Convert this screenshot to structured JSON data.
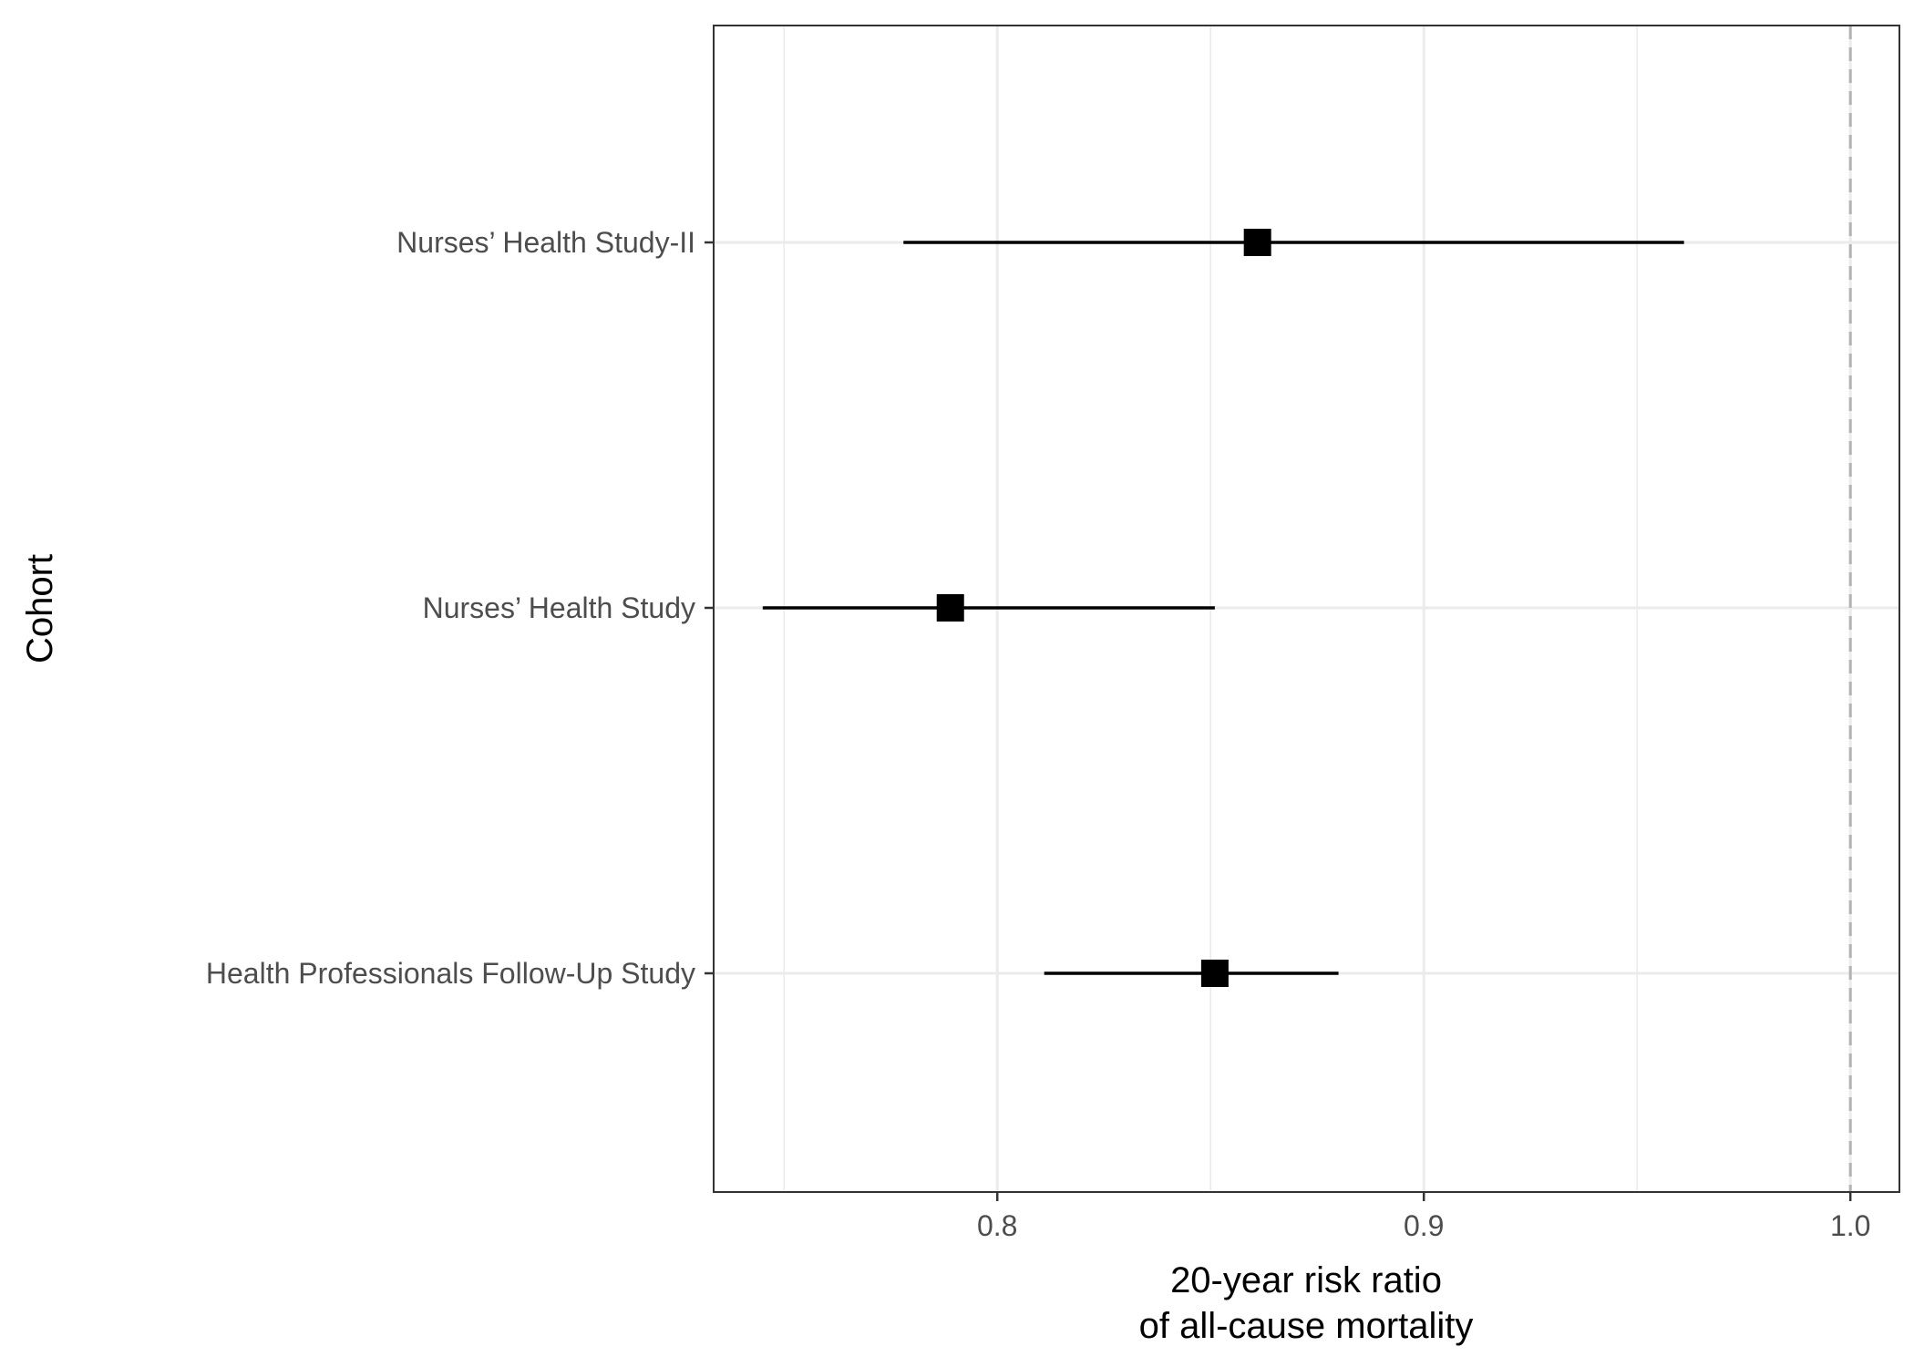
{
  "chart_data": {
    "type": "forest",
    "xlabel": [
      "20-year risk ratio",
      "of all-cause mortality"
    ],
    "ylabel": "Cohort",
    "xlim": [
      0.7335,
      1.0115
    ],
    "x_ticks": [
      0.8,
      0.9,
      1.0
    ],
    "x_tick_labels": [
      "0.8",
      "0.9",
      "1.0"
    ],
    "x_minor_ticks": [
      0.75,
      0.85,
      0.95
    ],
    "reference_line": 1.0,
    "grid": true,
    "categories": [
      "Nurses’ Health Study-II",
      "Nurses’ Health Study",
      "Health Professionals Follow-Up Study"
    ],
    "estimates": [
      0.861,
      0.789,
      0.851
    ],
    "lower": [
      0.778,
      0.745,
      0.811
    ],
    "upper": [
      0.961,
      0.851,
      0.88
    ]
  }
}
